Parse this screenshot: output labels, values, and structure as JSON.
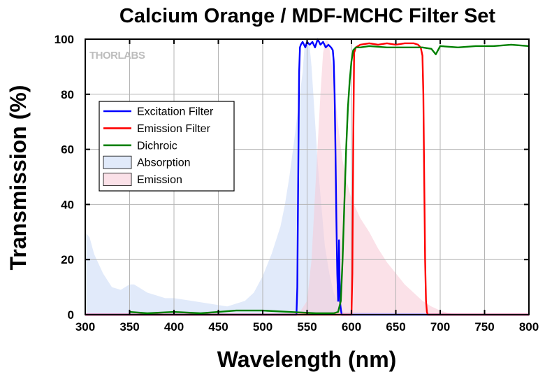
{
  "chart_data": {
    "type": "line",
    "title": "Calcium Orange / MDF-MCHC Filter Set",
    "xlabel": "Wavelength (nm)",
    "ylabel": "Transmission (%)",
    "xlim": [
      300,
      800
    ],
    "ylim": [
      0,
      100
    ],
    "xticks": [
      300,
      350,
      400,
      450,
      500,
      550,
      600,
      650,
      700,
      750,
      800
    ],
    "yticks": [
      0,
      20,
      40,
      60,
      80,
      100
    ],
    "grid": true,
    "legend_position": "top-left",
    "logo_text": "THORLABS",
    "series": [
      {
        "name": "Excitation Filter",
        "kind": "line",
        "color": "#0000ff",
        "x": [
          300,
          538,
          539,
          540,
          541,
          542,
          543,
          545,
          548,
          550,
          553,
          556,
          559,
          562,
          565,
          568,
          571,
          574,
          577,
          579,
          580,
          581,
          582,
          583,
          584,
          585,
          586,
          587,
          588,
          589,
          590,
          800
        ],
        "y": [
          0,
          0,
          10,
          50,
          88,
          97,
          98,
          99,
          97,
          99,
          98,
          99,
          97,
          100,
          98,
          99,
          97,
          98,
          97,
          96,
          92,
          80,
          60,
          35,
          15,
          5,
          27,
          5,
          2,
          0,
          0,
          0
        ]
      },
      {
        "name": "Emission Filter",
        "kind": "line",
        "color": "#ff0000",
        "x": [
          300,
          600,
          601,
          602,
          603,
          605,
          610,
          620,
          630,
          640,
          650,
          660,
          670,
          675,
          678,
          680,
          681,
          682,
          683,
          684,
          685,
          686,
          800
        ],
        "y": [
          0,
          0,
          15,
          60,
          95,
          97,
          98,
          98.5,
          98,
          98.5,
          98,
          98.5,
          98.5,
          98,
          97,
          94,
          80,
          50,
          20,
          5,
          1,
          0,
          0
        ]
      },
      {
        "name": "Dichroic",
        "kind": "line",
        "color": "#008000",
        "x": [
          350,
          370,
          400,
          430,
          450,
          470,
          500,
          530,
          560,
          580,
          585,
          588,
          590,
          592,
          594,
          596,
          598,
          600,
          602,
          605,
          610,
          620,
          640,
          660,
          680,
          690,
          695,
          700,
          720,
          740,
          760,
          780,
          800
        ],
        "y": [
          1,
          0.5,
          1,
          0.5,
          1,
          1.5,
          1.5,
          1,
          0.5,
          0.5,
          1,
          5,
          20,
          40,
          60,
          75,
          85,
          92,
          96,
          97,
          97,
          97.5,
          97,
          97,
          97,
          96.5,
          94.5,
          97.5,
          97,
          97.5,
          97.5,
          98,
          97.5
        ]
      },
      {
        "name": "Absorption",
        "kind": "area",
        "color": "#c8d9f5",
        "x": [
          300,
          305,
          310,
          320,
          330,
          340,
          350,
          355,
          360,
          370,
          380,
          390,
          400,
          420,
          440,
          460,
          480,
          490,
          500,
          510,
          520,
          525,
          530,
          535,
          540,
          545,
          547,
          549,
          551,
          553,
          555,
          558,
          562,
          566,
          570,
          575,
          580,
          585,
          590,
          800
        ],
        "y": [
          30,
          28,
          22,
          15,
          10,
          9,
          11,
          11,
          10,
          8,
          7,
          6,
          6,
          5,
          4,
          3,
          5,
          8,
          14,
          22,
          32,
          40,
          50,
          62,
          75,
          88,
          97,
          100,
          100,
          97,
          90,
          75,
          55,
          40,
          25,
          15,
          8,
          4,
          1,
          0
        ]
      },
      {
        "name": "Emission",
        "kind": "area",
        "color": "#f8c8d6",
        "x": [
          540,
          550,
          555,
          560,
          565,
          568,
          571,
          573,
          575,
          578,
          582,
          586,
          590,
          595,
          600,
          610,
          620,
          630,
          640,
          650,
          660,
          670,
          680,
          690,
          700,
          710,
          720
        ],
        "y": [
          0,
          5,
          20,
          50,
          80,
          95,
          100,
          100,
          97,
          90,
          78,
          66,
          56,
          48,
          42,
          35,
          30,
          24,
          19,
          15,
          11,
          8,
          5,
          3,
          1.5,
          0.5,
          0
        ]
      }
    ]
  }
}
